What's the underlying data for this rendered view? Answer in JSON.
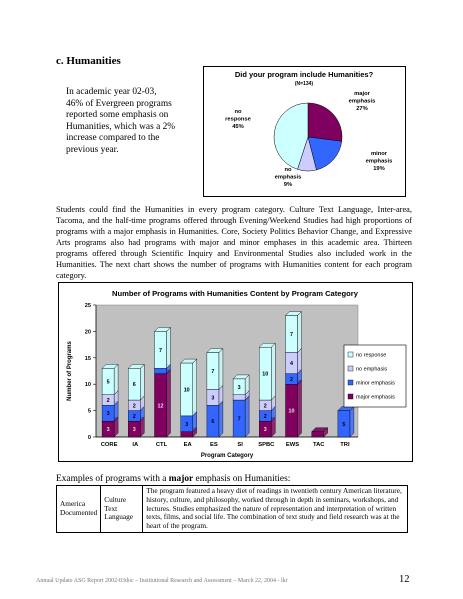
{
  "section": {
    "heading": "c.  Humanities"
  },
  "intro": {
    "text": "In academic year 02-03, 46% of Evergreen programs reported some emphasis on Humanities, which was a 2% increase compared to the previous year."
  },
  "body": {
    "text": "Students could find the Humanities in every program category.  Culture Text Language, Inter-area, Tacoma, and the half-time programs offered through Evening/Weekend Studies had high proportions of programs with a major emphasis in Humanities.  Core, Society Politics Behavior Change, and Expressive Arts programs also had programs with major and minor emphases in this academic area.  Thirteen programs offered through Scientific Inquiry and Environmental Studies also included work in the Humanities.  The next chart shows the number of programs with Humanities content for each program category."
  },
  "examples": {
    "heading_before": "Examples of programs with a ",
    "heading_bold": "major",
    "heading_after": " emphasis on Humanities:",
    "rows": [
      {
        "program": "America Documented",
        "area": "Culture Text Language",
        "description": "The program featured a heavy diet of readings in twentieth century American literature, history, culture, and philosophy, worked through in depth in seminars, workshops, and lectures.  Studies emphasized the nature of representation and interpretation of written texts, films, and social life.  The combination of text study and field research was at the heart of the program."
      }
    ]
  },
  "footer": {
    "text": "Annual Update ASG Report 2002-03doc – Institutional Research and Assessment – March 22, 2004 - lkr",
    "page_number": "12"
  },
  "chart_data": [
    {
      "type": "pie",
      "title": "Did your program include Humanities?",
      "subtitle": "(N=134)",
      "slices": [
        {
          "label": "major emphasis",
          "value": 27,
          "display": "27%",
          "color": "#800060"
        },
        {
          "label": "minor emphasis",
          "value": 19,
          "display": "19%",
          "color": "#3366ff"
        },
        {
          "label": "no emphasis",
          "value": 9,
          "display": "9%",
          "color": "#ccccff"
        },
        {
          "label": "no response",
          "value": 45,
          "display": "45%",
          "color": "#ccffff"
        }
      ]
    },
    {
      "type": "bar",
      "stacked": true,
      "title": "Number of Programs with Humanities Content by Program Category",
      "xlabel": "Program Category",
      "ylabel": "Number of Programs",
      "ylim": [
        0,
        25
      ],
      "yticks": [
        0,
        5,
        10,
        15,
        20,
        25
      ],
      "categories": [
        "CORE",
        "IA",
        "CTL",
        "EA",
        "ES",
        "SI",
        "SPBC",
        "EWS",
        "TAC",
        "TRI"
      ],
      "series": [
        {
          "name": "major emphasis",
          "color": "#800060",
          "values": [
            3,
            3,
            12,
            1,
            0,
            0,
            3,
            10,
            1,
            0
          ]
        },
        {
          "name": "minor emphasis",
          "color": "#3366ff",
          "values": [
            3,
            2,
            1,
            3,
            6,
            7,
            2,
            2,
            0,
            5
          ]
        },
        {
          "name": "no emphasis",
          "color": "#ccccff",
          "values": [
            2,
            2,
            0,
            0,
            3,
            1,
            2,
            4,
            0,
            0
          ]
        },
        {
          "name": "no response",
          "color": "#ccffff",
          "values": [
            5,
            6,
            7,
            10,
            7,
            3,
            10,
            7,
            0,
            0
          ]
        }
      ],
      "legend_position": "right",
      "grid": false
    }
  ]
}
